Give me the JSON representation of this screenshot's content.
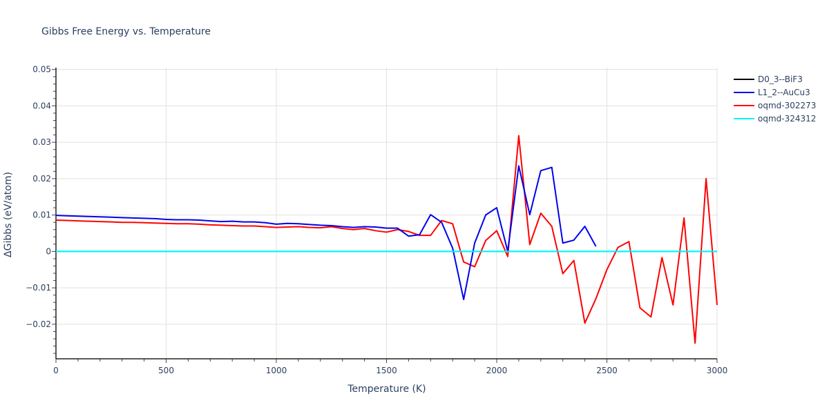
{
  "chart_data": {
    "type": "line",
    "title": "Gibbs Free Energy vs. Temperature",
    "xlabel": "Temperature (K)",
    "ylabel": "ΔGibbs (eV/atom)",
    "xlim": [
      0,
      3000
    ],
    "ylim": [
      -0.0295,
      0.0505
    ],
    "xticks": [
      0,
      500,
      1000,
      1500,
      2000,
      2500,
      3000
    ],
    "xtick_labels": [
      "0",
      "500",
      "1000",
      "1500",
      "2000",
      "2500",
      "3000"
    ],
    "yticks": [
      -0.02,
      -0.01,
      0,
      0.01,
      0.02,
      0.03,
      0.04,
      0.05
    ],
    "ytick_labels": [
      "−0.02",
      "−0.01",
      "0",
      "0.01",
      "0.02",
      "0.03",
      "0.04",
      "0.05"
    ],
    "grid": true,
    "legend_position": "top-right",
    "series": [
      {
        "name": "D0_3--BiF3",
        "color": "#000000",
        "x": [],
        "y": []
      },
      {
        "name": "L1_2--AuCu3",
        "color": "#0000ee",
        "x": [
          0,
          50,
          100,
          150,
          200,
          250,
          300,
          350,
          400,
          450,
          500,
          550,
          600,
          650,
          700,
          750,
          800,
          850,
          900,
          950,
          1000,
          1050,
          1100,
          1150,
          1200,
          1250,
          1300,
          1350,
          1400,
          1450,
          1500,
          1550,
          1600,
          1650,
          1700,
          1750,
          1800,
          1850,
          1900,
          1950,
          2000,
          2050,
          2100,
          2150,
          2200,
          2250,
          2300,
          2350,
          2400,
          2450
        ],
        "y": [
          0.0099,
          0.0098,
          0.0097,
          0.0096,
          0.0095,
          0.0094,
          0.0093,
          0.0092,
          0.0091,
          0.009,
          0.0088,
          0.0087,
          0.0087,
          0.0086,
          0.0084,
          0.0082,
          0.0083,
          0.0081,
          0.0081,
          0.0079,
          0.0075,
          0.0077,
          0.0076,
          0.0074,
          0.0072,
          0.0071,
          0.0068,
          0.0066,
          0.0068,
          0.0067,
          0.0064,
          0.0064,
          0.0042,
          0.0046,
          0.0101,
          0.008,
          0.0009,
          -0.0132,
          0.0023,
          0.01,
          0.012,
          0.0,
          0.0235,
          0.0101,
          0.0222,
          0.0231,
          0.0023,
          0.0031,
          0.0069,
          0.0014
        ]
      },
      {
        "name": "oqmd-302273",
        "color": "#ff0000",
        "x": [
          0,
          50,
          100,
          150,
          200,
          250,
          300,
          350,
          400,
          450,
          500,
          550,
          600,
          650,
          700,
          750,
          800,
          850,
          900,
          950,
          1000,
          1050,
          1100,
          1150,
          1200,
          1250,
          1300,
          1350,
          1400,
          1450,
          1500,
          1550,
          1600,
          1650,
          1700,
          1750,
          1800,
          1850,
          1900,
          1950,
          2000,
          2050,
          2100,
          2150,
          2200,
          2250,
          2300,
          2350,
          2400,
          2450,
          2500,
          2550,
          2600,
          2650,
          2700,
          2750,
          2800,
          2850,
          2900,
          2950,
          3000
        ],
        "y": [
          0.0086,
          0.0085,
          0.0084,
          0.0083,
          0.0082,
          0.0081,
          0.008,
          0.008,
          0.0079,
          0.0078,
          0.0077,
          0.0076,
          0.0076,
          0.0075,
          0.0073,
          0.0072,
          0.0071,
          0.007,
          0.007,
          0.0068,
          0.0066,
          0.0067,
          0.0068,
          0.0066,
          0.0065,
          0.0068,
          0.0063,
          0.006,
          0.0063,
          0.0057,
          0.0053,
          0.006,
          0.0055,
          0.0044,
          0.0044,
          0.0085,
          0.0076,
          -0.0029,
          -0.0042,
          0.003,
          0.0057,
          -0.0014,
          0.0318,
          0.0019,
          0.0105,
          0.0069,
          -0.0061,
          -0.0025,
          -0.0197,
          -0.013,
          -0.005,
          0.0011,
          0.0027,
          -0.0155,
          -0.018,
          -0.0017,
          -0.0147,
          0.0092,
          -0.0252,
          0.02,
          -0.0147
        ]
      },
      {
        "name": "oqmd-324312",
        "color": "#00f5f5",
        "x": [
          0,
          50,
          100,
          150,
          200,
          250,
          300,
          350,
          400,
          450,
          500,
          550,
          600,
          650,
          700,
          750,
          800,
          850,
          900,
          950,
          1000,
          1050,
          1100,
          1150,
          1200,
          1250,
          1300,
          1350,
          1400,
          1450,
          1500,
          1550,
          1600,
          1650,
          1700,
          1750,
          1800,
          1850,
          1900,
          1950,
          2000,
          2050,
          2100,
          2150,
          2200,
          2250,
          2300,
          2350,
          2400,
          2450,
          2500,
          2550,
          2600,
          2650,
          2700,
          2750,
          2800,
          2850,
          2900,
          2950,
          3000
        ],
        "y": [
          0,
          0,
          0,
          0,
          0,
          0,
          0,
          0,
          0,
          0,
          0,
          0,
          0,
          0,
          0,
          0,
          0,
          0,
          0,
          0,
          0,
          0,
          0,
          0,
          0,
          0,
          0,
          0,
          0,
          0,
          0,
          0,
          0,
          0,
          0,
          0,
          0,
          0,
          0,
          0,
          0,
          0,
          0,
          0,
          0,
          0,
          0,
          0,
          0,
          0,
          0,
          0,
          0,
          0,
          0,
          0,
          0,
          0,
          0,
          0,
          0
        ]
      }
    ]
  }
}
